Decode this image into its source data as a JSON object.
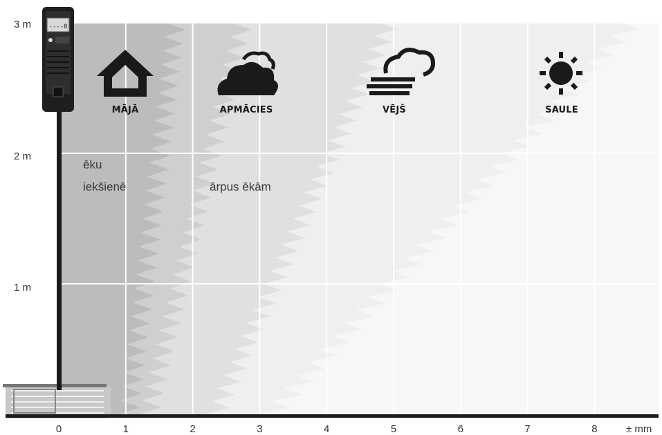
{
  "y_axis": {
    "ticks": [
      "3 m",
      "2 m",
      "1 m"
    ]
  },
  "x_axis": {
    "ticks": [
      "0",
      "1",
      "2",
      "3",
      "4",
      "5",
      "6",
      "7",
      "8"
    ],
    "unit": "± mm"
  },
  "zones": {
    "indoor_line1": "ēku",
    "indoor_line2": "iekšienē",
    "outdoor": "ārpus ēkām"
  },
  "conditions": [
    {
      "label": "MĀJĀ",
      "icon": "house-icon"
    },
    {
      "label": "APMĀCIES",
      "icon": "cloud-icon"
    },
    {
      "label": "VĒJŠ",
      "icon": "wind-cloud-icon"
    },
    {
      "label": "SAULE",
      "icon": "sun-icon"
    }
  ],
  "device": {
    "display": "----0"
  },
  "colors": {
    "indoor_band": "#bcbcbc",
    "overcast_band": "#cfcfcf",
    "wind_band": "#e0e0e0",
    "sun_band": "#efefef",
    "grid": "#ffffff",
    "axis": "#1a1a1a"
  }
}
